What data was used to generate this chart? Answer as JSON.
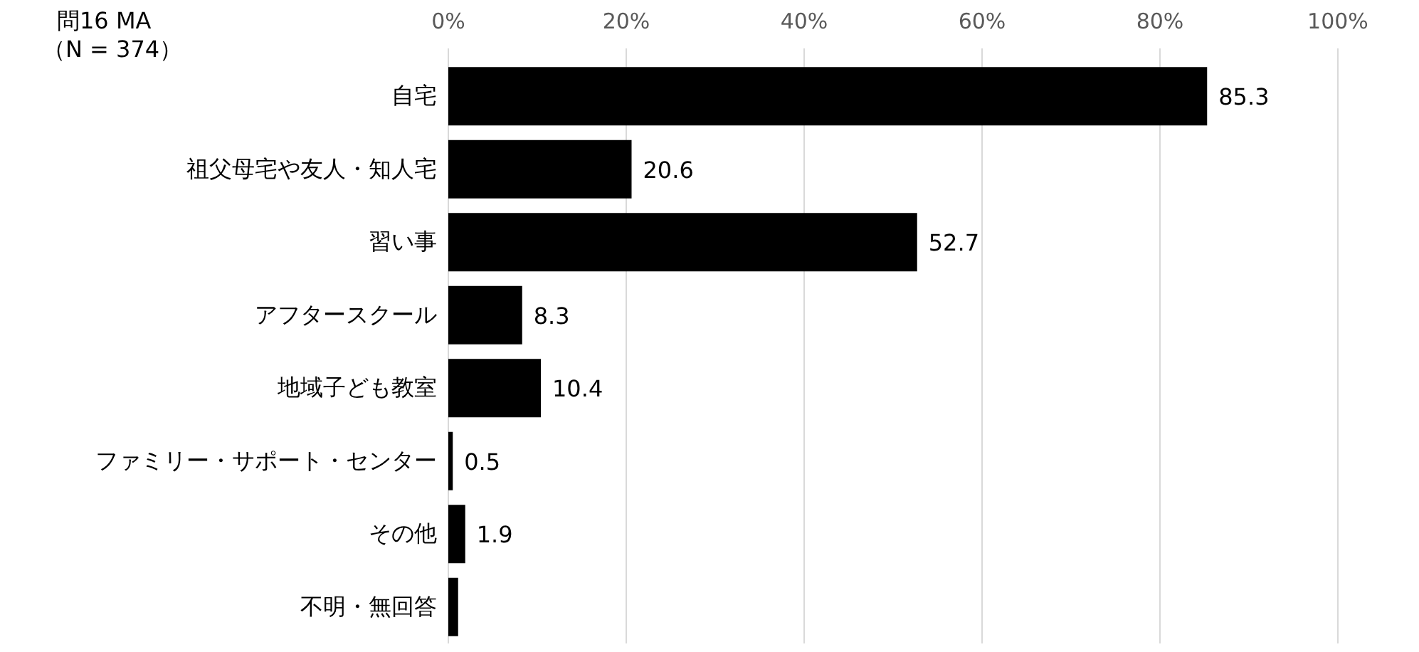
{
  "chart_data": {
    "type": "bar",
    "orientation": "horizontal",
    "title": "問16 MA",
    "subtitle": "（N = 374）",
    "categories": [
      "自宅",
      "祖父母宅や友人・知人宅",
      "習い事",
      "アフタースクール",
      "地域子ども教室",
      "ファミリー・サポート・センター",
      "その他",
      "不明・無回答"
    ],
    "values": [
      85.3,
      20.6,
      52.7,
      8.3,
      10.4,
      0.5,
      1.9,
      1.1
    ],
    "value_labels": [
      "85.3",
      "20.6",
      "52.7",
      "8.3",
      "10.4",
      "0.5",
      "1.9",
      null
    ],
    "color": "#000000",
    "xlim": [
      0,
      100
    ],
    "xticks": [
      {
        "value": 0,
        "label": "0%"
      },
      {
        "value": 20,
        "label": "20%"
      },
      {
        "value": 40,
        "label": "40%"
      },
      {
        "value": 60,
        "label": "60%"
      },
      {
        "value": 80,
        "label": "80%"
      },
      {
        "value": 100,
        "label": "100%"
      }
    ],
    "grid": "x"
  }
}
